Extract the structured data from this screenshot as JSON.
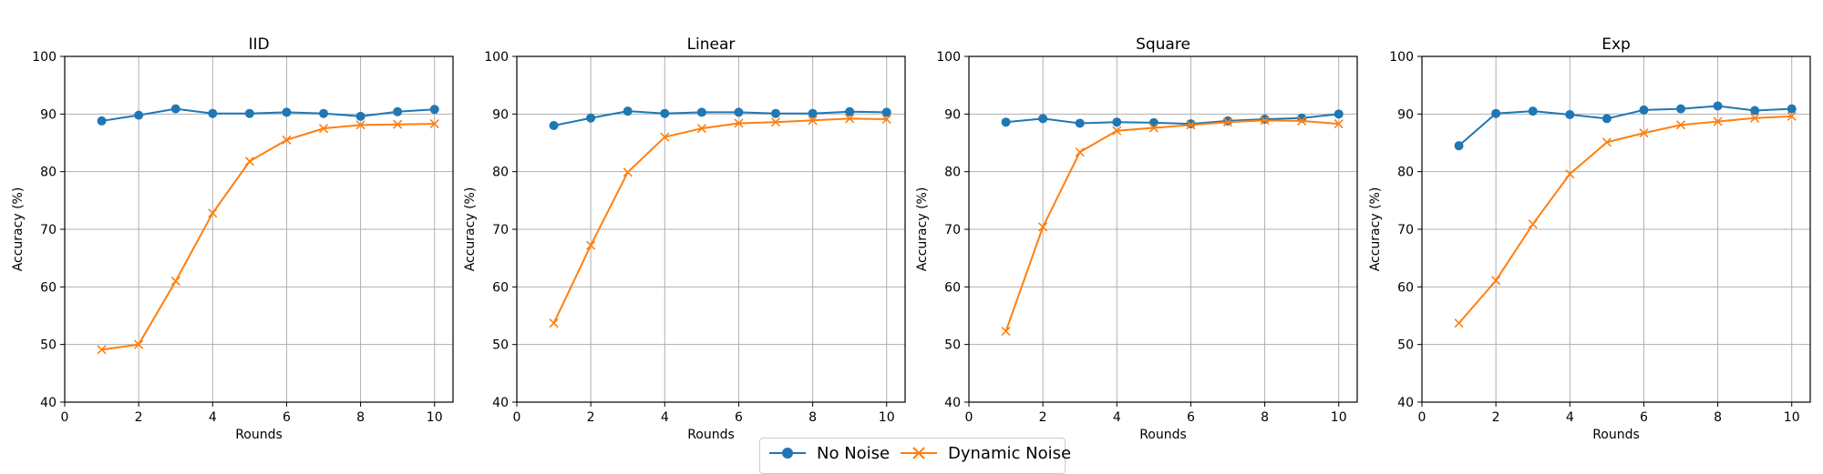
{
  "chart_data": [
    {
      "type": "line",
      "title": "IID",
      "xlabel": "Rounds",
      "ylabel": "Accuracy (%)",
      "xlim": [
        0,
        10.5
      ],
      "ylim": [
        40,
        100
      ],
      "xticks": [
        0,
        2,
        4,
        6,
        8,
        10
      ],
      "yticks": [
        40,
        50,
        60,
        70,
        80,
        90,
        100
      ],
      "grid": true,
      "x": [
        1,
        2,
        3,
        4,
        5,
        6,
        7,
        8,
        9,
        10
      ],
      "series": [
        {
          "name": "No Noise",
          "values": [
            88.8,
            89.8,
            90.9,
            90.1,
            90.1,
            90.3,
            90.1,
            89.6,
            90.4,
            90.8
          ]
        },
        {
          "name": "Dynamic Noise",
          "values": [
            49.1,
            50.0,
            61.0,
            72.8,
            81.8,
            85.5,
            87.5,
            88.1,
            88.2,
            88.3
          ]
        }
      ]
    },
    {
      "type": "line",
      "title": "Linear",
      "xlabel": "Rounds",
      "ylabel": "Accuracy (%)",
      "xlim": [
        0,
        10.5
      ],
      "ylim": [
        40,
        100
      ],
      "xticks": [
        0,
        2,
        4,
        6,
        8,
        10
      ],
      "yticks": [
        40,
        50,
        60,
        70,
        80,
        90,
        100
      ],
      "grid": true,
      "x": [
        1,
        2,
        3,
        4,
        5,
        6,
        7,
        8,
        9,
        10
      ],
      "series": [
        {
          "name": "No Noise",
          "values": [
            88.0,
            89.3,
            90.5,
            90.1,
            90.3,
            90.3,
            90.1,
            90.1,
            90.4,
            90.3
          ]
        },
        {
          "name": "Dynamic Noise",
          "values": [
            53.7,
            67.2,
            79.9,
            86.0,
            87.5,
            88.4,
            88.6,
            88.9,
            89.2,
            89.1
          ]
        }
      ]
    },
    {
      "type": "line",
      "title": "Square",
      "xlabel": "Rounds",
      "ylabel": "Accuracy (%)",
      "xlim": [
        0,
        10.5
      ],
      "ylim": [
        40,
        100
      ],
      "xticks": [
        0,
        2,
        4,
        6,
        8,
        10
      ],
      "yticks": [
        40,
        50,
        60,
        70,
        80,
        90,
        100
      ],
      "grid": true,
      "x": [
        1,
        2,
        3,
        4,
        5,
        6,
        7,
        8,
        9,
        10
      ],
      "series": [
        {
          "name": "No Noise",
          "values": [
            88.6,
            89.2,
            88.4,
            88.6,
            88.5,
            88.3,
            88.8,
            89.1,
            89.3,
            90.0
          ]
        },
        {
          "name": "Dynamic Noise",
          "values": [
            52.3,
            70.4,
            83.4,
            87.1,
            87.6,
            88.1,
            88.6,
            88.9,
            88.8,
            88.3
          ]
        }
      ]
    },
    {
      "type": "line",
      "title": "Exp",
      "xlabel": "Rounds",
      "ylabel": "Accuracy (%)",
      "xlim": [
        0,
        10.5
      ],
      "ylim": [
        40,
        100
      ],
      "xticks": [
        0,
        2,
        4,
        6,
        8,
        10
      ],
      "yticks": [
        40,
        50,
        60,
        70,
        80,
        90,
        100
      ],
      "grid": true,
      "x": [
        1,
        2,
        3,
        4,
        5,
        6,
        7,
        8,
        9,
        10
      ],
      "series": [
        {
          "name": "No Noise",
          "values": [
            84.5,
            90.1,
            90.5,
            89.9,
            89.2,
            90.7,
            90.9,
            91.4,
            90.6,
            90.9
          ]
        },
        {
          "name": "Dynamic Noise",
          "values": [
            53.7,
            61.1,
            70.9,
            79.6,
            85.1,
            86.7,
            88.1,
            88.7,
            89.3,
            89.6
          ]
        }
      ]
    }
  ],
  "legend": {
    "placement": "bottom-center",
    "entries": [
      {
        "label": "No Noise",
        "color": "#1f77b4",
        "marker": "circle"
      },
      {
        "label": "Dynamic Noise",
        "color": "#ff7f0e",
        "marker": "x"
      }
    ]
  },
  "colors": {
    "no_noise": "#1f77b4",
    "dynamic_noise": "#ff7f0e",
    "grid": "#b0b0b0"
  }
}
